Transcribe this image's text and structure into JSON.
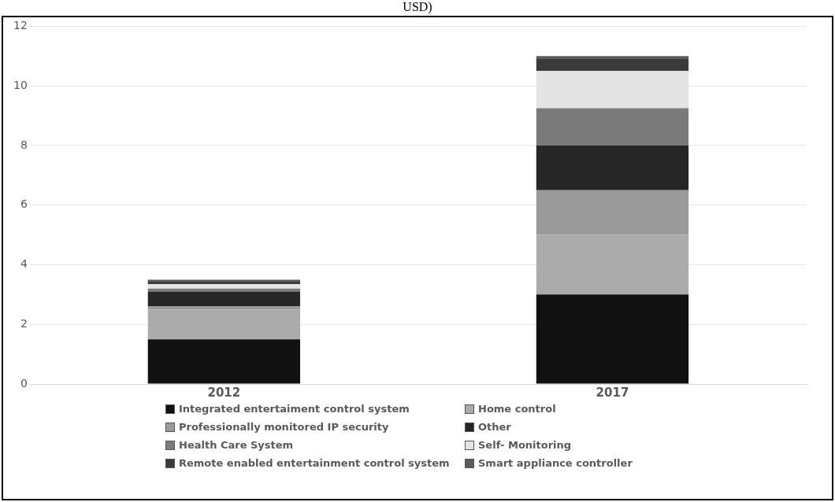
{
  "chart_data": {
    "type": "bar",
    "title": "USD)",
    "stacked": true,
    "categories": [
      "2012",
      "2017"
    ],
    "series": [
      {
        "name": "Integrated entertaiment control system",
        "color": "#111111",
        "values": [
          1.5,
          3
        ]
      },
      {
        "name": "Home control",
        "color": "#ababab",
        "values": [
          1.0,
          2.0
        ]
      },
      {
        "name": "Professionally monitored IP security",
        "color": "#9a9a9a",
        "values": [
          0.1,
          1.5
        ]
      },
      {
        "name": "Other",
        "color": "#262626",
        "values": [
          0.5,
          1.5
        ]
      },
      {
        "name": "Health Care System",
        "color": "#7a7a7a",
        "values": [
          0.1,
          1.25
        ]
      },
      {
        "name": "Self- Monitoring",
        "color": "#e4e4e4",
        "values": [
          0.15,
          1.25
        ]
      },
      {
        "name": "Remote enabled entertainment control system",
        "color": "#3a3a3a",
        "values": [
          0.1,
          0.4
        ]
      },
      {
        "name": "Smart appliance controller",
        "color": "#5c5c5c",
        "values": [
          0.05,
          0.1
        ]
      }
    ],
    "ylim": [
      0,
      12
    ],
    "yticks": [
      0,
      2,
      4,
      6,
      8,
      10,
      12
    ],
    "grid": "y",
    "legend": "bottom"
  }
}
